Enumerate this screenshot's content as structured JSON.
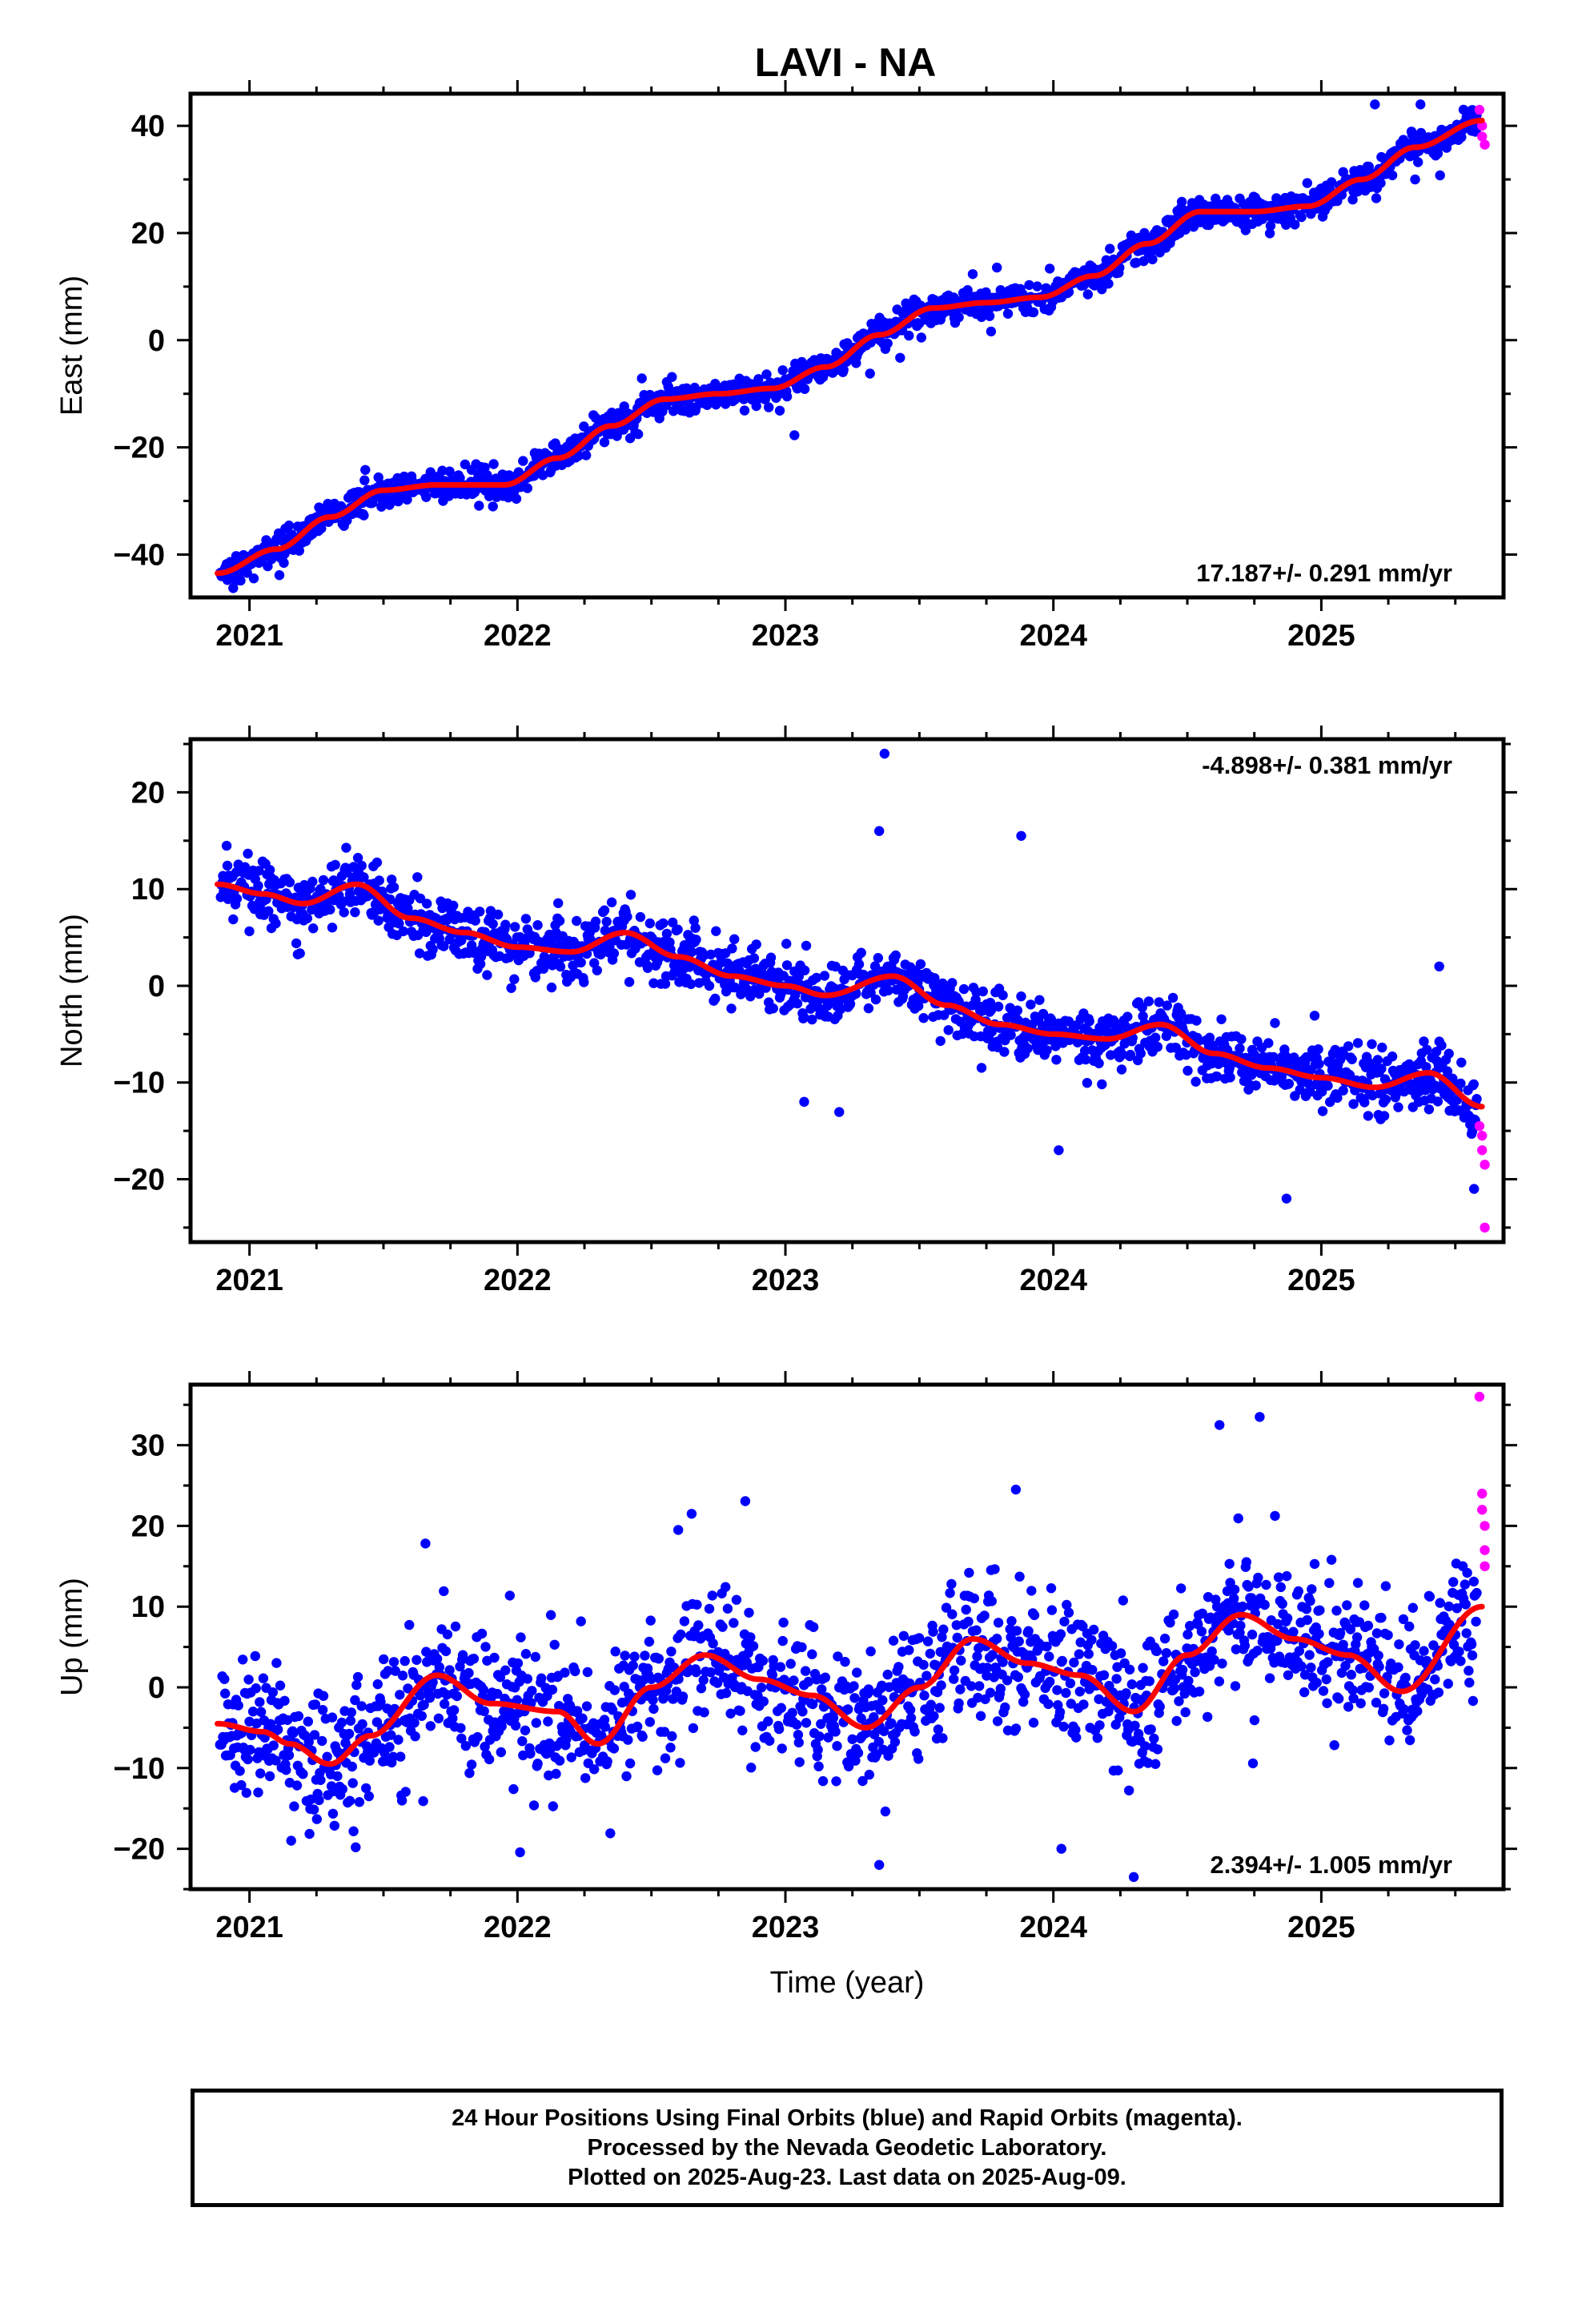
{
  "figure": {
    "title": "LAVI - NA",
    "xlabel": "Time (year)",
    "footer": [
      "24 Hour Positions Using Final Orbits (blue) and Rapid Orbits (magenta).",
      "Processed by the Nevada Geodetic Laboratory.",
      "Plotted on 2025-Aug-23. Last data on 2025-Aug-09."
    ],
    "colors": {
      "final": "#0000ff",
      "rapid": "#ff00ff",
      "fit": "#ff0000"
    }
  },
  "chart_data": [
    {
      "type": "scatter",
      "ylabel": "East (mm)",
      "rate_label": "17.187+/- 0.291 mm/yr",
      "rate_position": "bottom-right",
      "xlim": [
        2020.78,
        2025.68
      ],
      "ylim": [
        -48,
        46
      ],
      "xticks": [
        2021,
        2022,
        2023,
        2024,
        2025
      ],
      "yticks": [
        -40,
        -20,
        0,
        20,
        40
      ],
      "trend_mm_per_yr": 17.187,
      "fit_curve": {
        "x": [
          2020.88,
          2021.1,
          2021.3,
          2021.5,
          2021.7,
          2021.95,
          2022.15,
          2022.35,
          2022.55,
          2022.75,
          2022.95,
          2023.15,
          2023.35,
          2023.55,
          2023.75,
          2023.95,
          2024.15,
          2024.35,
          2024.55,
          2024.75,
          2024.95,
          2025.15,
          2025.35,
          2025.6
        ],
        "y": [
          -43.5,
          -39,
          -33,
          -28,
          -27,
          -27,
          -22,
          -16,
          -11,
          -10,
          -9,
          -5,
          1,
          6,
          7,
          8,
          12,
          18,
          24,
          24,
          25,
          30,
          36,
          41
        ]
      },
      "scatter_sigma": 1.4,
      "rapid": {
        "x": [
          2025.59,
          2025.6,
          2025.6,
          2025.61
        ],
        "y": [
          43,
          40,
          38,
          36.5
        ]
      },
      "outliers": {
        "x": [
          2025.2,
          2025.35,
          2025.37
        ],
        "y": [
          44,
          30,
          44
        ]
      }
    },
    {
      "type": "scatter",
      "ylabel": "North (mm)",
      "rate_label": "-4.898+/- 0.381 mm/yr",
      "rate_position": "top-right",
      "xlim": [
        2020.78,
        2025.68
      ],
      "ylim": [
        -26.5,
        25.5
      ],
      "xticks": [
        2021,
        2022,
        2023,
        2024,
        2025
      ],
      "yticks": [
        -20,
        -10,
        0,
        10,
        20
      ],
      "trend_mm_per_yr": -4.898,
      "fit_curve": {
        "x": [
          2020.88,
          2021.05,
          2021.2,
          2021.4,
          2021.6,
          2021.8,
          2022.0,
          2022.2,
          2022.4,
          2022.6,
          2022.8,
          2023.0,
          2023.15,
          2023.4,
          2023.6,
          2023.8,
          2024.0,
          2024.2,
          2024.4,
          2024.6,
          2024.8,
          2025.0,
          2025.2,
          2025.4,
          2025.6
        ],
        "y": [
          10.5,
          9.5,
          8.5,
          10.5,
          7,
          5.5,
          4,
          3.5,
          5.5,
          3,
          1,
          0,
          -1,
          1,
          -2,
          -4,
          -5,
          -5.5,
          -4,
          -7,
          -8.5,
          -9.5,
          -10.5,
          -9,
          -12.5
        ]
      },
      "scatter_sigma": 1.6,
      "rapid": {
        "x": [
          2025.59,
          2025.6,
          2025.6,
          2025.61,
          2025.61
        ],
        "y": [
          -14.5,
          -15.5,
          -17,
          -18.5,
          -25
        ]
      },
      "outliers": {
        "x": [
          2023.37,
          2023.35,
          2023.88,
          2023.07,
          2024.02,
          2024.87,
          2025.44,
          2025.57
        ],
        "y": [
          24,
          16,
          15.5,
          -12,
          -17,
          -22,
          2,
          -21
        ]
      }
    },
    {
      "type": "scatter",
      "ylabel": "Up (mm)",
      "rate_label": "2.394+/- 1.005 mm/yr",
      "rate_position": "bottom-right",
      "xlim": [
        2020.78,
        2025.68
      ],
      "ylim": [
        -25,
        37.5
      ],
      "xticks": [
        2021,
        2022,
        2023,
        2024,
        2025
      ],
      "yticks": [
        -20,
        -10,
        0,
        10,
        20,
        30
      ],
      "trend_mm_per_yr": 2.394,
      "fit_curve": {
        "x": [
          2020.88,
          2021.05,
          2021.15,
          2021.3,
          2021.45,
          2021.7,
          2021.9,
          2022.15,
          2022.3,
          2022.5,
          2022.7,
          2022.9,
          2023.1,
          2023.3,
          2023.5,
          2023.7,
          2023.9,
          2024.1,
          2024.3,
          2024.5,
          2024.7,
          2024.9,
          2025.1,
          2025.3,
          2025.6
        ],
        "y": [
          -4.5,
          -5.5,
          -7,
          -9.5,
          -6,
          1.5,
          -2,
          -3,
          -7,
          0,
          4,
          1,
          -1,
          -5,
          0,
          6,
          3,
          1.5,
          -3,
          4,
          9,
          6,
          4,
          -0.5,
          10
        ]
      },
      "scatter_sigma": 4.2,
      "rapid": {
        "x": [
          2025.59,
          2025.6,
          2025.6,
          2025.61,
          2025.61,
          2025.61
        ],
        "y": [
          36,
          24,
          22,
          20,
          17,
          15
        ]
      },
      "outliers": {
        "x": [
          2024.62,
          2024.77,
          2023.86,
          2022.65,
          2024.3,
          2023.35,
          2024.03,
          2022.6
        ],
        "y": [
          32.5,
          33.5,
          24.5,
          21.5,
          -23.5,
          -22,
          -20,
          19.5
        ]
      }
    }
  ]
}
